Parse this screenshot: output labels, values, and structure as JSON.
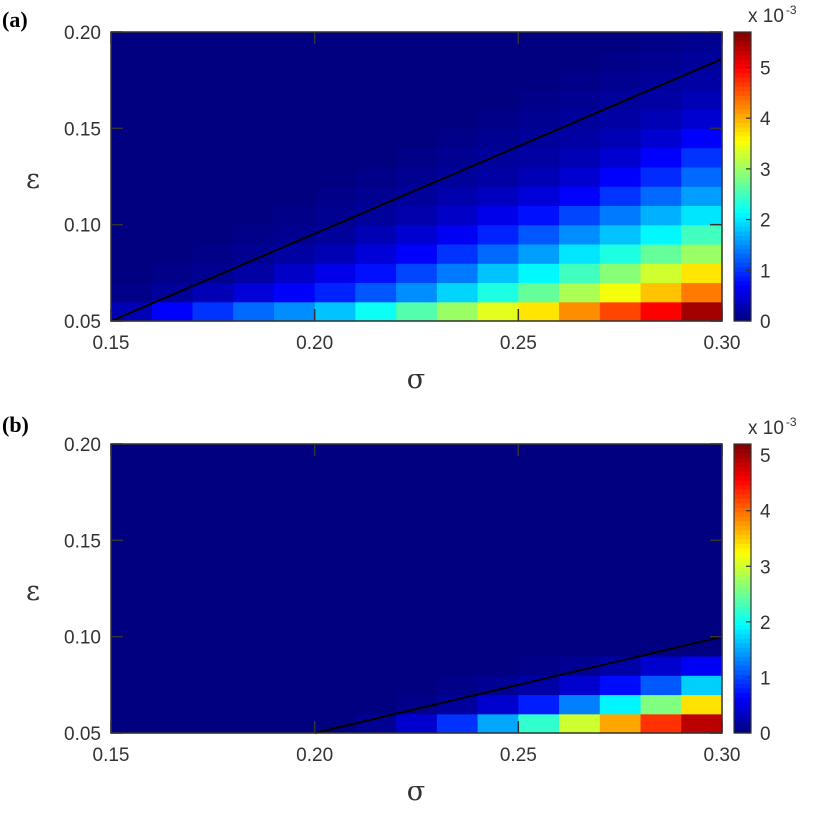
{
  "chart_data": [
    {
      "panel_label": "(a)",
      "type": "heatmap",
      "xlabel": "σ",
      "ylabel": "ε",
      "xlim": [
        0.15,
        0.3
      ],
      "ylim": [
        0.05,
        0.2
      ],
      "xticks": [
        "0.15",
        "0.20",
        "0.25",
        "0.30"
      ],
      "yticks": [
        "0.05",
        "0.10",
        "0.15",
        "0.20"
      ],
      "x_cells": [
        0.155,
        0.165,
        0.175,
        0.185,
        0.195,
        0.205,
        0.215,
        0.225,
        0.235,
        0.245,
        0.255,
        0.265,
        0.275,
        0.285,
        0.295
      ],
      "y_cells": [
        0.055,
        0.065,
        0.075,
        0.085,
        0.095,
        0.105,
        0.115,
        0.125,
        0.135,
        0.145,
        0.155,
        0.165,
        0.175,
        0.185,
        0.195
      ],
      "values_x1e3": [
        [
          0.3,
          0.7,
          1.0,
          1.3,
          1.5,
          1.8,
          2.2,
          2.6,
          3.0,
          3.4,
          3.7,
          4.2,
          4.6,
          5.0,
          5.5
        ],
        [
          0.05,
          0.15,
          0.3,
          0.5,
          0.7,
          0.9,
          1.2,
          1.5,
          1.9,
          2.3,
          2.7,
          3.1,
          3.5,
          3.9,
          4.3
        ],
        [
          0,
          0.05,
          0.1,
          0.2,
          0.4,
          0.6,
          0.8,
          1.1,
          1.4,
          1.8,
          2.1,
          2.5,
          2.9,
          3.3,
          3.7
        ],
        [
          0,
          0,
          0.05,
          0.1,
          0.2,
          0.3,
          0.5,
          0.7,
          1.0,
          1.3,
          1.6,
          2.0,
          2.3,
          2.7,
          3.0
        ],
        [
          0,
          0,
          0,
          0.05,
          0.1,
          0.15,
          0.3,
          0.45,
          0.65,
          0.9,
          1.2,
          1.5,
          1.8,
          2.1,
          2.5
        ],
        [
          0,
          0,
          0,
          0,
          0.05,
          0.1,
          0.15,
          0.25,
          0.4,
          0.6,
          0.8,
          1.1,
          1.4,
          1.7,
          2.0
        ],
        [
          0,
          0,
          0,
          0,
          0,
          0.05,
          0.1,
          0.15,
          0.25,
          0.35,
          0.5,
          0.7,
          1.0,
          1.3,
          1.6
        ],
        [
          0,
          0,
          0,
          0,
          0,
          0,
          0.05,
          0.1,
          0.15,
          0.2,
          0.3,
          0.45,
          0.7,
          0.95,
          1.3
        ],
        [
          0,
          0,
          0,
          0,
          0,
          0,
          0,
          0.05,
          0.1,
          0.15,
          0.2,
          0.3,
          0.45,
          0.7,
          1.0
        ],
        [
          0,
          0,
          0,
          0,
          0,
          0,
          0,
          0,
          0.05,
          0.1,
          0.15,
          0.2,
          0.3,
          0.45,
          0.7
        ],
        [
          0,
          0,
          0,
          0,
          0,
          0,
          0,
          0,
          0,
          0.05,
          0.1,
          0.15,
          0.2,
          0.3,
          0.45
        ],
        [
          0,
          0,
          0,
          0,
          0,
          0,
          0,
          0,
          0,
          0,
          0.05,
          0.1,
          0.15,
          0.2,
          0.3
        ],
        [
          0,
          0,
          0,
          0,
          0,
          0,
          0,
          0,
          0,
          0,
          0,
          0.05,
          0.1,
          0.15,
          0.2
        ],
        [
          0,
          0,
          0,
          0,
          0,
          0,
          0,
          0,
          0,
          0,
          0,
          0,
          0.05,
          0.1,
          0.15
        ],
        [
          0,
          0,
          0,
          0,
          0,
          0,
          0,
          0,
          0,
          0,
          0,
          0,
          0,
          0.05,
          0.1
        ]
      ],
      "colorbar": {
        "min": 0,
        "max": 5.7,
        "ticks": [
          "0",
          "1",
          "2",
          "3",
          "4",
          "5"
        ],
        "exponent_base": "x 10",
        "exponent_power": "-3"
      },
      "boundary_line": {
        "x": [
          0.15,
          0.3
        ],
        "y": [
          0.05,
          0.186
        ]
      }
    },
    {
      "panel_label": "(b)",
      "type": "heatmap",
      "xlabel": "σ",
      "ylabel": "ε",
      "xlim": [
        0.15,
        0.3
      ],
      "ylim": [
        0.05,
        0.2
      ],
      "xticks": [
        "0.15",
        "0.20",
        "0.25",
        "0.30"
      ],
      "yticks": [
        "0.05",
        "0.10",
        "0.15",
        "0.20"
      ],
      "x_cells": [
        0.155,
        0.165,
        0.175,
        0.185,
        0.195,
        0.205,
        0.215,
        0.225,
        0.235,
        0.245,
        0.255,
        0.265,
        0.275,
        0.285,
        0.295
      ],
      "y_cells": [
        0.055,
        0.065,
        0.075,
        0.085,
        0.095,
        0.105,
        0.115,
        0.125,
        0.135,
        0.145,
        0.155,
        0.165,
        0.175,
        0.185,
        0.195
      ],
      "values_x1e3": [
        [
          0,
          0,
          0,
          0,
          0,
          0,
          0.1,
          0.4,
          0.9,
          1.5,
          2.2,
          3.0,
          3.7,
          4.3,
          4.9
        ],
        [
          0,
          0,
          0,
          0,
          0,
          0,
          0,
          0.05,
          0.15,
          0.4,
          0.8,
          1.3,
          1.9,
          2.6,
          3.4
        ],
        [
          0,
          0,
          0,
          0,
          0,
          0,
          0,
          0,
          0.05,
          0.1,
          0.2,
          0.4,
          0.7,
          1.1,
          1.7
        ],
        [
          0,
          0,
          0,
          0,
          0,
          0,
          0,
          0,
          0,
          0,
          0.05,
          0.1,
          0.2,
          0.4,
          0.6
        ],
        [
          0,
          0,
          0,
          0,
          0,
          0,
          0,
          0,
          0,
          0,
          0,
          0,
          0,
          0,
          0
        ],
        [
          0,
          0,
          0,
          0,
          0,
          0,
          0,
          0,
          0,
          0,
          0,
          0,
          0,
          0,
          0
        ],
        [
          0,
          0,
          0,
          0,
          0,
          0,
          0,
          0,
          0,
          0,
          0,
          0,
          0,
          0,
          0
        ],
        [
          0,
          0,
          0,
          0,
          0,
          0,
          0,
          0,
          0,
          0,
          0,
          0,
          0,
          0,
          0
        ],
        [
          0,
          0,
          0,
          0,
          0,
          0,
          0,
          0,
          0,
          0,
          0,
          0,
          0,
          0,
          0
        ],
        [
          0,
          0,
          0,
          0,
          0,
          0,
          0,
          0,
          0,
          0,
          0,
          0,
          0,
          0,
          0
        ],
        [
          0,
          0,
          0,
          0,
          0,
          0,
          0,
          0,
          0,
          0,
          0,
          0,
          0,
          0,
          0
        ],
        [
          0,
          0,
          0,
          0,
          0,
          0,
          0,
          0,
          0,
          0,
          0,
          0,
          0,
          0,
          0
        ],
        [
          0,
          0,
          0,
          0,
          0,
          0,
          0,
          0,
          0,
          0,
          0,
          0,
          0,
          0,
          0
        ],
        [
          0,
          0,
          0,
          0,
          0,
          0,
          0,
          0,
          0,
          0,
          0,
          0,
          0,
          0,
          0
        ],
        [
          0,
          0,
          0,
          0,
          0,
          0,
          0,
          0,
          0,
          0,
          0,
          0,
          0,
          0,
          0
        ]
      ],
      "colorbar": {
        "min": 0,
        "max": 5.2,
        "ticks": [
          "0",
          "1",
          "2",
          "3",
          "4",
          "5"
        ],
        "exponent_base": "x 10",
        "exponent_power": "-3"
      },
      "boundary_line": {
        "x": [
          0.2,
          0.3
        ],
        "y": [
          0.05,
          0.1
        ]
      }
    }
  ],
  "colormap": "jet"
}
